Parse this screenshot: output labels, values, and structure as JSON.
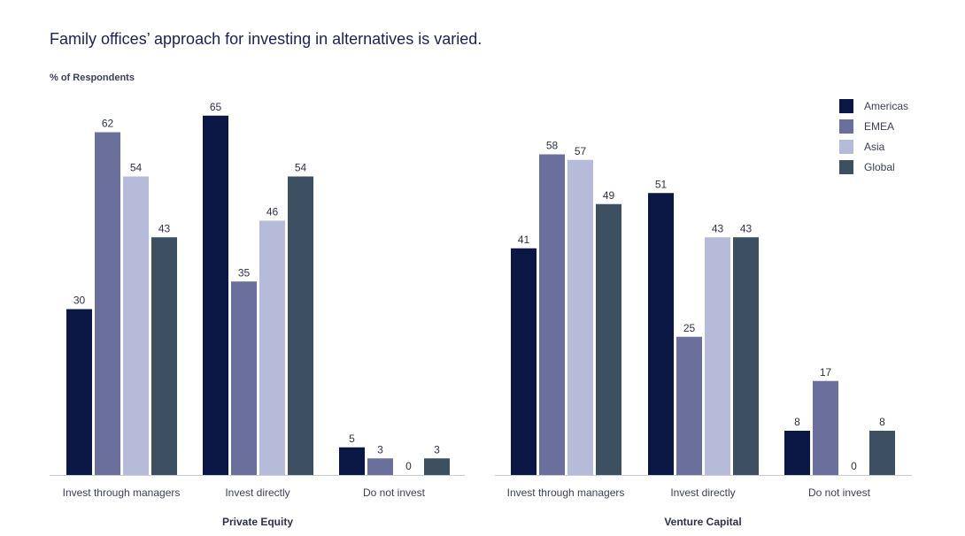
{
  "headline": "Family offices’ approach for investing in alternatives is varied.",
  "y_axis_label": "% of Respondents",
  "colors": {
    "Americas": "#0a1744",
    "EMEA": "#6b6f9b",
    "Asia": "#b7bbda",
    "Global": "#3d5062"
  },
  "chart_data": [
    {
      "type": "bar",
      "title": "Private Equity",
      "ylabel": "% of Respondents",
      "categories": [
        "Invest through managers",
        "Invest directly",
        "Do not invest"
      ],
      "series": [
        {
          "name": "Americas",
          "values": [
            30,
            65,
            5
          ]
        },
        {
          "name": "EMEA",
          "values": [
            62,
            35,
            3
          ]
        },
        {
          "name": "Asia",
          "values": [
            54,
            46,
            0
          ]
        },
        {
          "name": "Global",
          "values": [
            43,
            54,
            3
          ]
        }
      ],
      "ylim": [
        0,
        65
      ],
      "grid": false,
      "legend": "none"
    },
    {
      "type": "bar",
      "title": "Venture Capital",
      "ylabel": "% of Respondents",
      "categories": [
        "Invest through managers",
        "Invest directly",
        "Do not invest"
      ],
      "series": [
        {
          "name": "Americas",
          "values": [
            41,
            51,
            8
          ]
        },
        {
          "name": "EMEA",
          "values": [
            58,
            25,
            17
          ]
        },
        {
          "name": "Asia",
          "values": [
            57,
            43,
            0
          ]
        },
        {
          "name": "Global",
          "values": [
            49,
            43,
            8
          ]
        }
      ],
      "ylim": [
        0,
        65
      ],
      "grid": false,
      "legend": "top-right"
    }
  ]
}
